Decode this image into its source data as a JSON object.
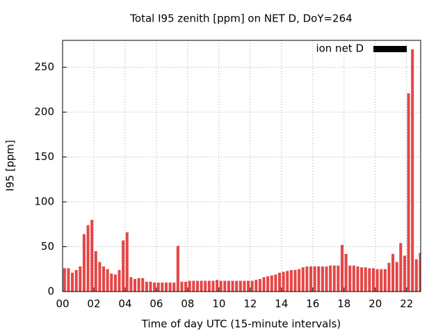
{
  "chart_data": {
    "type": "bar",
    "title": "Total I95 zenith [ppm] on NET D, DoY=264",
    "xlabel": "Time of day UTC (15-minute intervals)",
    "ylabel": "I95 [ppm]",
    "x": [
      0,
      0.25,
      0.5,
      0.75,
      1,
      1.25,
      1.5,
      1.75,
      2,
      2.25,
      2.5,
      2.75,
      3,
      3.25,
      3.5,
      3.75,
      4,
      4.25,
      4.5,
      4.75,
      5,
      5.25,
      5.5,
      5.75,
      6,
      6.25,
      6.5,
      6.75,
      7,
      7.25,
      7.5,
      7.75,
      8,
      8.25,
      8.5,
      8.75,
      9,
      9.25,
      9.5,
      9.75,
      10,
      10.25,
      10.5,
      10.75,
      11,
      11.25,
      11.5,
      11.75,
      12,
      12.25,
      12.5,
      12.75,
      13,
      13.25,
      13.5,
      13.75,
      14,
      14.25,
      14.5,
      14.75,
      15,
      15.25,
      15.5,
      15.75,
      16,
      16.25,
      16.5,
      16.75,
      17,
      17.25,
      17.5,
      17.75,
      18,
      18.25,
      18.5,
      18.75,
      19,
      19.25,
      19.5,
      19.75,
      20,
      20.25,
      20.5,
      20.75,
      21,
      21.25,
      21.5,
      21.75,
      22,
      22.25,
      22.5,
      22.75
    ],
    "series": [
      {
        "name": "ion net D",
        "color": "#e64545",
        "values": [
          26,
          26,
          21,
          24,
          28,
          64,
          74,
          80,
          45,
          33,
          28,
          25,
          20,
          19,
          24,
          57,
          66,
          16,
          14,
          15,
          15,
          11,
          11,
          10,
          10,
          10,
          10,
          10,
          10,
          51,
          11,
          11,
          12,
          12,
          12,
          12,
          12,
          12,
          12,
          13,
          12,
          12,
          12,
          12,
          12,
          12,
          12,
          12,
          12,
          13,
          14,
          16,
          17,
          18,
          19,
          21,
          22,
          23,
          24,
          24,
          25,
          27,
          28,
          28,
          28,
          28,
          28,
          28,
          29,
          29,
          29,
          52,
          42,
          29,
          29,
          28,
          27,
          27,
          26,
          26,
          25,
          25,
          25,
          32,
          42,
          33,
          54,
          40,
          221,
          270,
          36,
          43
        ]
      }
    ],
    "xlim": [
      0,
      22.9
    ],
    "xticks": [
      {
        "value": 0,
        "label": "00"
      },
      {
        "value": 2,
        "label": "02"
      },
      {
        "value": 4,
        "label": "04"
      },
      {
        "value": 6,
        "label": "06"
      },
      {
        "value": 8,
        "label": "08"
      },
      {
        "value": 10,
        "label": "10"
      },
      {
        "value": 12,
        "label": "12"
      },
      {
        "value": 14,
        "label": "14"
      },
      {
        "value": 16,
        "label": "16"
      },
      {
        "value": 18,
        "label": "18"
      },
      {
        "value": 20,
        "label": "20"
      },
      {
        "value": 22,
        "label": "22"
      }
    ],
    "ylim": [
      0,
      280
    ],
    "yticks": [
      0,
      50,
      100,
      150,
      200,
      250
    ],
    "grid": true,
    "legend": "top-right"
  }
}
